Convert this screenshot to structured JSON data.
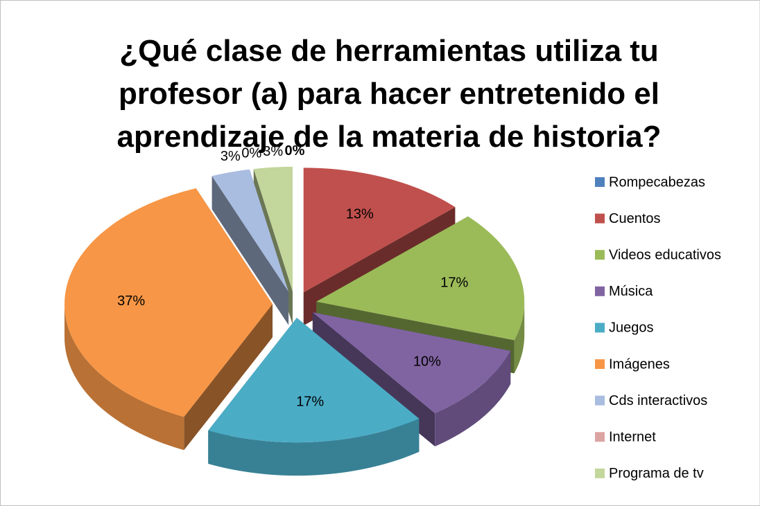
{
  "chart_data": {
    "type": "pie",
    "title": "¿Qué clase de herramientas utiliza tu profesor (a) para hacer entretenido el aprendizaje de la materia de historia?",
    "categories": [
      "Rompecabezas",
      "Cuentos",
      "Videos educativos",
      "Música",
      "Juegos",
      "Imágenes",
      "Cds interactivos",
      "Internet",
      "Programa de tv"
    ],
    "values": [
      0,
      13,
      17,
      10,
      17,
      37,
      3,
      0,
      3
    ],
    "value_labels": [
      "0%",
      "13%",
      "17%",
      "10%",
      "17%",
      "37%",
      "3%",
      "0%",
      "3%"
    ],
    "colors": [
      "#4f81bd",
      "#c0504d",
      "#9bbb59",
      "#8064a2",
      "#4bacc6",
      "#f79646",
      "#a9bde0",
      "#dba4a3",
      "#c3d69b"
    ],
    "legend": "right"
  }
}
